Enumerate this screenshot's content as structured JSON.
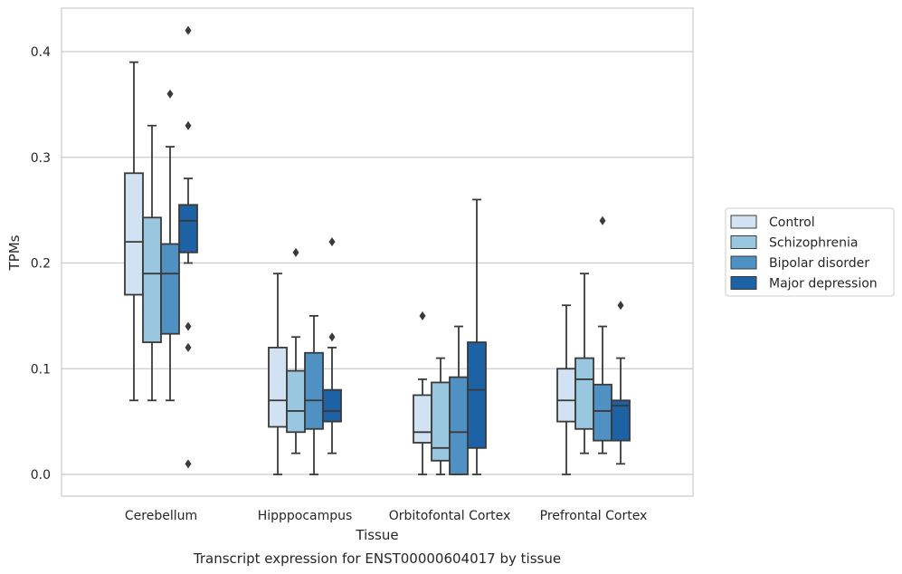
{
  "chart_data": {
    "type": "box",
    "title": "Transcript expression for ENST00000604017 by tissue",
    "xlabel": "Tissue",
    "ylabel": "TPMs",
    "ylim": [
      -0.02,
      0.44
    ],
    "yticks": [
      "0.0",
      "0.1",
      "0.2",
      "0.3",
      "0.4"
    ],
    "grid": true,
    "legend_position": "right",
    "categories": [
      "Cerebellum",
      "Hipppocampus",
      "Orbitofontal Cortex",
      "Prefrontal Cortex"
    ],
    "series": [
      {
        "name": "Control",
        "color": "#d1e2f2",
        "boxes": [
          {
            "whislo": 0.07,
            "q1": 0.17,
            "med": 0.22,
            "q3": 0.285,
            "whishi": 0.39,
            "fliers": []
          },
          {
            "whislo": 0.0,
            "q1": 0.045,
            "med": 0.07,
            "q3": 0.12,
            "whishi": 0.19,
            "fliers": []
          },
          {
            "whislo": 0.0,
            "q1": 0.03,
            "med": 0.04,
            "q3": 0.075,
            "whishi": 0.09,
            "fliers": [
              0.15
            ]
          },
          {
            "whislo": 0.0,
            "q1": 0.05,
            "med": 0.07,
            "q3": 0.1,
            "whishi": 0.16,
            "fliers": []
          }
        ]
      },
      {
        "name": "Schizophrenia",
        "color": "#9ac7e0",
        "boxes": [
          {
            "whislo": 0.07,
            "q1": 0.125,
            "med": 0.19,
            "q3": 0.243,
            "whishi": 0.33,
            "fliers": []
          },
          {
            "whislo": 0.02,
            "q1": 0.04,
            "med": 0.06,
            "q3": 0.098,
            "whishi": 0.13,
            "fliers": [
              0.21
            ]
          },
          {
            "whislo": 0.0,
            "q1": 0.013,
            "med": 0.025,
            "q3": 0.087,
            "whishi": 0.11,
            "fliers": []
          },
          {
            "whislo": 0.02,
            "q1": 0.043,
            "med": 0.09,
            "q3": 0.11,
            "whishi": 0.19,
            "fliers": []
          }
        ]
      },
      {
        "name": "Bipolar disorder",
        "color": "#4f91c2",
        "boxes": [
          {
            "whislo": 0.07,
            "q1": 0.133,
            "med": 0.19,
            "q3": 0.218,
            "whishi": 0.31,
            "fliers": [
              0.36
            ]
          },
          {
            "whislo": 0.0,
            "q1": 0.043,
            "med": 0.07,
            "q3": 0.115,
            "whishi": 0.15,
            "fliers": []
          },
          {
            "whislo": 0.0,
            "q1": 0.0,
            "med": 0.04,
            "q3": 0.092,
            "whishi": 0.14,
            "fliers": []
          },
          {
            "whislo": 0.02,
            "q1": 0.032,
            "med": 0.06,
            "q3": 0.085,
            "whishi": 0.14,
            "fliers": [
              0.24
            ]
          }
        ]
      },
      {
        "name": "Major depression",
        "color": "#1c62a5",
        "boxes": [
          {
            "whislo": 0.2,
            "q1": 0.21,
            "med": 0.24,
            "q3": 0.255,
            "whishi": 0.28,
            "fliers": [
              0.42,
              0.33,
              0.14,
              0.12,
              0.01
            ]
          },
          {
            "whislo": 0.02,
            "q1": 0.05,
            "med": 0.06,
            "q3": 0.08,
            "whishi": 0.12,
            "fliers": [
              0.22,
              0.13
            ]
          },
          {
            "whislo": 0.0,
            "q1": 0.025,
            "med": 0.08,
            "q3": 0.125,
            "whishi": 0.26,
            "fliers": []
          },
          {
            "whislo": 0.01,
            "q1": 0.032,
            "med": 0.065,
            "q3": 0.07,
            "whishi": 0.11,
            "fliers": [
              0.16
            ]
          }
        ]
      }
    ]
  }
}
